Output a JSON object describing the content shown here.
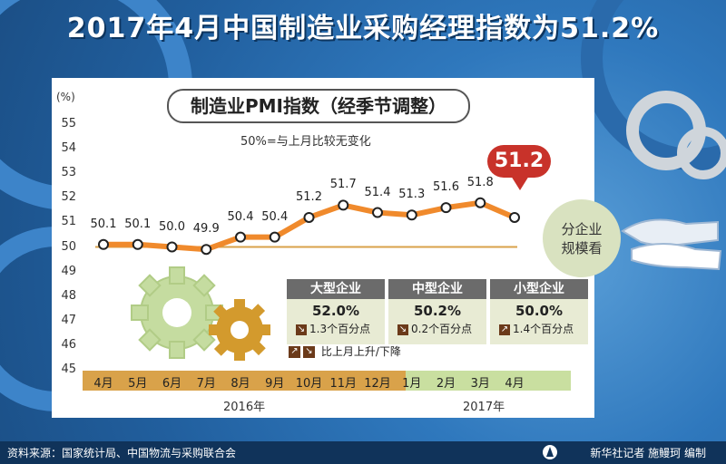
{
  "title": "2017年4月中国制造业采购经理指数为51.2%",
  "chart": {
    "title": "制造业PMI指数（经季节调整）",
    "note": "50%=与上月比较无变化",
    "y_unit": "(%)",
    "callout": "51.2",
    "years": [
      "2016年",
      "2017年"
    ]
  },
  "chart_data": {
    "type": "line",
    "title": "制造业PMI指数（经季节调整）",
    "xlabel": "",
    "ylabel": "(%)",
    "ylim": [
      45,
      55
    ],
    "yticks": [
      45,
      46,
      47,
      48,
      49,
      50,
      51,
      52,
      53,
      54,
      55
    ],
    "categories": [
      "4月",
      "5月",
      "6月",
      "7月",
      "8月",
      "9月",
      "10月",
      "11月",
      "12月",
      "1月",
      "2月",
      "3月",
      "4月"
    ],
    "value_labels": [
      "50.1",
      "50.1",
      "50.0",
      "49.9",
      "50.4",
      "50.4",
      "51.2",
      "51.7",
      "51.4",
      "51.3",
      "51.6",
      "51.8",
      ""
    ],
    "series": [
      {
        "values": [
          50.1,
          50.1,
          50.0,
          49.9,
          50.4,
          50.4,
          51.2,
          51.7,
          51.4,
          51.3,
          51.6,
          51.8,
          51.2
        ]
      }
    ],
    "grid": false,
    "line_color": "#f08a2c"
  },
  "enterprises": [
    {
      "name": "大型企业",
      "value": "52.0%",
      "change": "1.3个百分点",
      "direction": "down"
    },
    {
      "name": "中型企业",
      "value": "50.2%",
      "change": "0.2个百分点",
      "direction": "down"
    },
    {
      "name": "小型企业",
      "value": "50.0%",
      "change": "1.4个百分点",
      "direction": "up"
    }
  ],
  "legend": "比上月上升/下降",
  "side_label": [
    "分企业",
    "规模看"
  ],
  "footer": {
    "source": "资料来源：国家统计局、中国物流与采购联合会",
    "credit": "新华社记者 施鳗珂 编制"
  },
  "colors": {
    "background": "#2f78bd",
    "line": "#f08a2c",
    "band_2016": "#d9a24a",
    "band_2017": "#c9dfa0",
    "callout": "#c8322a"
  }
}
